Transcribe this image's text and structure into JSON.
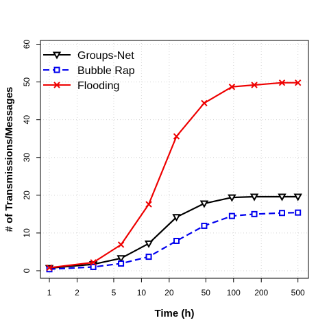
{
  "chart_data": {
    "type": "line",
    "xlabel": "Time (h)",
    "ylabel": "# of Transmissions/Messages",
    "xscale": "log",
    "xlim": [
      0.8,
      650
    ],
    "ylim": [
      -2,
      61
    ],
    "xticks": [
      1,
      2,
      5,
      10,
      20,
      50,
      100,
      200,
      500
    ],
    "yticks": [
      0,
      10,
      20,
      30,
      40,
      50,
      60
    ],
    "grid": true,
    "legend_position": "top-left",
    "x": [
      1,
      3,
      6,
      12,
      24,
      48,
      96,
      168,
      336,
      500
    ],
    "series": [
      {
        "name": "Groups-Net",
        "color": "#000000",
        "marker": "triangle-down",
        "dash": "solid",
        "values": [
          0.7,
          1.7,
          3.3,
          7.2,
          14.2,
          17.8,
          19.4,
          19.6,
          19.6,
          19.6
        ]
      },
      {
        "name": "Bubble Rap",
        "color": "#0000ee",
        "marker": "square",
        "dash": "dashed",
        "values": [
          0.4,
          1.0,
          1.9,
          3.7,
          7.9,
          11.9,
          14.5,
          15.0,
          15.3,
          15.4
        ]
      },
      {
        "name": "Flooding",
        "color": "#ee0000",
        "marker": "x",
        "dash": "solid",
        "values": [
          0.8,
          2.2,
          6.9,
          17.6,
          35.6,
          44.4,
          48.7,
          49.2,
          49.8,
          49.8
        ]
      }
    ]
  }
}
